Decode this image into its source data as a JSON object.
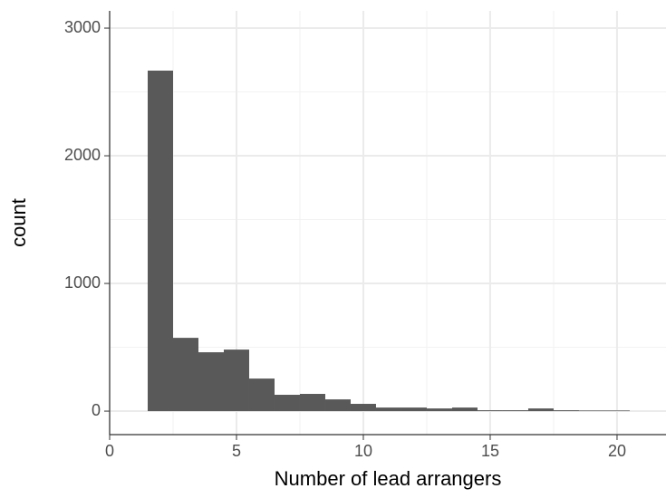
{
  "chart_data": {
    "type": "histogram",
    "x_label": "Number of lead arrangers",
    "y_label": "count",
    "bins": [
      1.5,
      2.5,
      3.5,
      4.5,
      5.5,
      6.5,
      7.5,
      8.5,
      9.5,
      10.5,
      11.5,
      12.5,
      13.5,
      14.5,
      15.5,
      16.5,
      17.5,
      18.5,
      19.5,
      20.5
    ],
    "values": [
      2667,
      574,
      461,
      482,
      255,
      128,
      135,
      92,
      57,
      28,
      28,
      21,
      28,
      7,
      7,
      21,
      7,
      5,
      5
    ],
    "color": "#595959",
    "xlim": [
      0,
      21.93
    ],
    "ylim": [
      -184,
      3135
    ],
    "xticks": [
      0,
      5,
      10,
      15,
      20
    ],
    "yticks": [
      0,
      1000,
      2000,
      3000
    ],
    "x_minor_ticks": [
      2.5,
      7.5,
      12.5,
      17.5
    ],
    "y_minor_ticks": [
      500,
      1500,
      2500
    ],
    "grid": true
  }
}
